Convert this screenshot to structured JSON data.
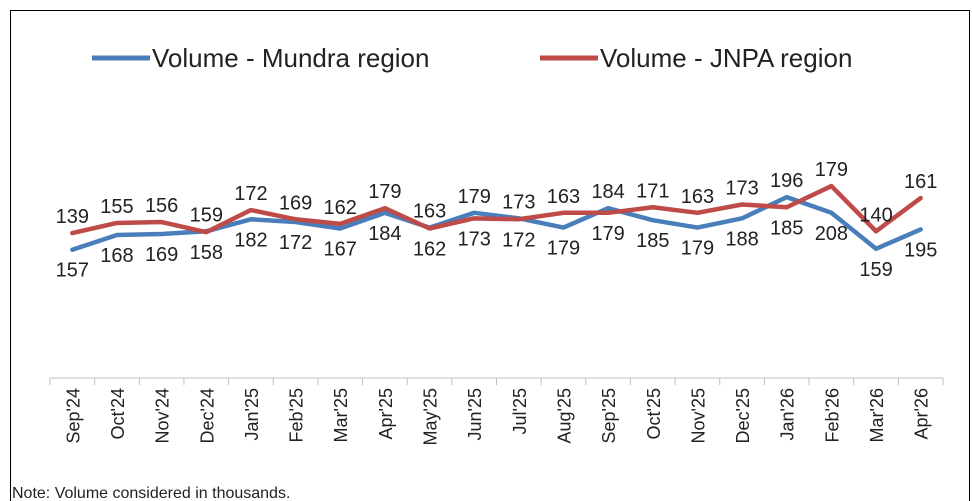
{
  "chart_data": {
    "type": "line",
    "categories": [
      "Sep'24",
      "Oct'24",
      "Nov'24",
      "Dec'24",
      "Jan'25",
      "Feb'25",
      "Mar'25",
      "Apr'25",
      "May'25",
      "Jun'25",
      "Jul'25",
      "Aug'25",
      "Sep'25",
      "Oct'25",
      "Nov'25",
      "Dec'25",
      "Jan'26",
      "Feb'26",
      "Mar'26",
      "Apr'26"
    ],
    "series": [
      {
        "name": "Volume - Mundra region",
        "color": "#4a7ebb",
        "values": [
          139,
          155,
          156,
          159,
          172,
          169,
          162,
          179,
          163,
          179,
          173,
          163,
          184,
          171,
          163,
          173,
          196,
          179,
          140,
          161
        ]
      },
      {
        "name": "Volume - JNPA region",
        "color": "#be4b48",
        "values": [
          157,
          168,
          169,
          158,
          182,
          172,
          167,
          184,
          162,
          173,
          172,
          179,
          179,
          185,
          179,
          188,
          185,
          208,
          159,
          195
        ]
      }
    ],
    "ylim": [
      0,
      350
    ],
    "note": "Note: Volume considered in thousands."
  }
}
